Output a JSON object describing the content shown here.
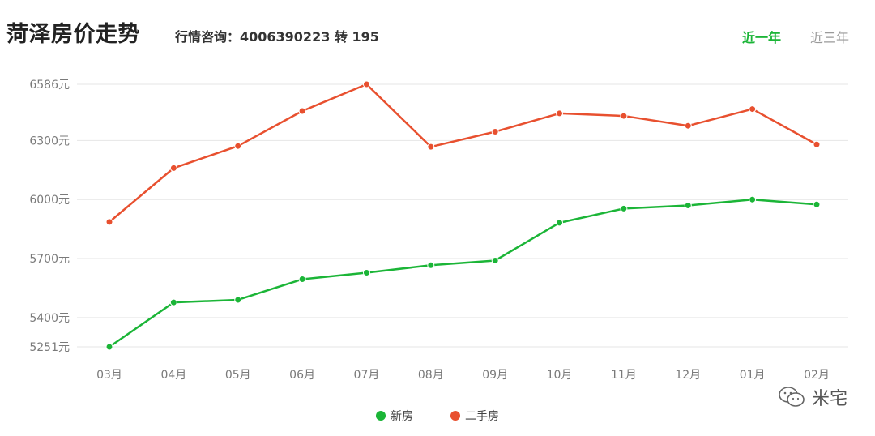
{
  "header": {
    "title": "菏泽房价走势",
    "hotline": "行情咨询：4006390223 转 195",
    "tabs": [
      {
        "label": "近一年",
        "active": true
      },
      {
        "label": "近三年",
        "active": false
      }
    ]
  },
  "watermark": {
    "text": "米宅",
    "icon": "wechat-icon"
  },
  "colors": {
    "new": "#1bb537",
    "second": "#e8502f",
    "grid": "#e6e6e6",
    "active_tab": "#1bb537"
  },
  "chart_data": {
    "type": "line",
    "categories": [
      "03月",
      "04月",
      "05月",
      "06月",
      "07月",
      "08月",
      "09月",
      "10月",
      "11月",
      "12月",
      "01月",
      "02月"
    ],
    "y_ticks": [
      {
        "value": 5251,
        "label": "5251元"
      },
      {
        "value": 5400,
        "label": "5400元"
      },
      {
        "value": 5700,
        "label": "5700元"
      },
      {
        "value": 6000,
        "label": "6000元"
      },
      {
        "value": 6300,
        "label": "6300元"
      },
      {
        "value": 6586,
        "label": "6586元"
      }
    ],
    "ylim": [
      5251,
      6586
    ],
    "grid": true,
    "legend_position": "bottom-center",
    "series": [
      {
        "name": "新房",
        "color": "#1bb537",
        "values": [
          5251,
          5477,
          5490,
          5595,
          5628,
          5666,
          5690,
          5882,
          5954,
          5970,
          6000,
          5975
        ]
      },
      {
        "name": "二手房",
        "color": "#e8502f",
        "values": [
          5886,
          6160,
          6272,
          6450,
          6586,
          6268,
          6345,
          6438,
          6425,
          6375,
          6460,
          6280
        ]
      }
    ]
  }
}
